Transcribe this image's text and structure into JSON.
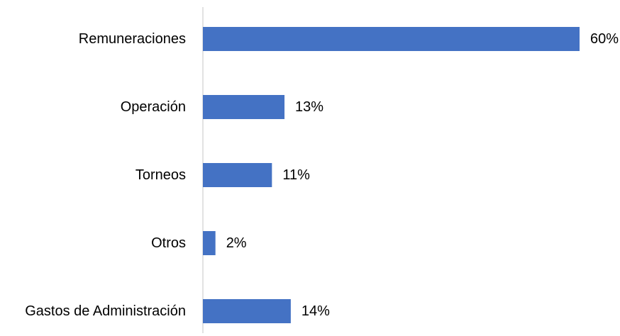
{
  "chart_data": {
    "type": "bar",
    "orientation": "horizontal",
    "categories": [
      "Remuneraciones",
      "Operación",
      "Torneos",
      "Otros",
      "Gastos de Administración"
    ],
    "values": [
      60,
      13,
      11,
      2,
      14
    ],
    "value_labels": [
      "60%",
      "13%",
      "11%",
      "2%",
      "14%"
    ],
    "unit": "%",
    "title": "",
    "xlabel": "",
    "ylabel": "",
    "xlim": [
      0,
      60
    ],
    "grid": false,
    "legend": "none",
    "bar_color": "#4472C4",
    "axis_color": "#D9D9D9"
  }
}
